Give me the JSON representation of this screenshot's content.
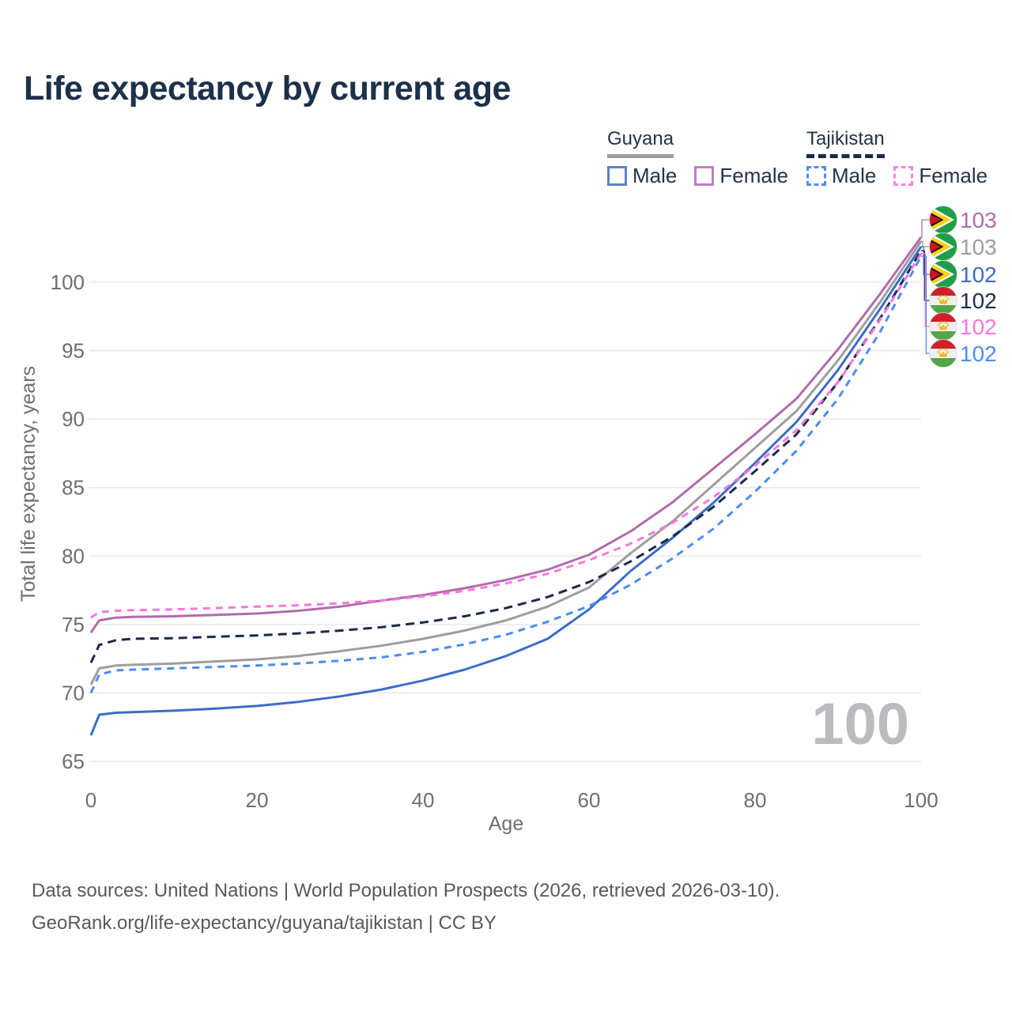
{
  "title": "Life expectancy by current age",
  "legend": {
    "groups": [
      {
        "country": "Guyana",
        "underline_style": "solid",
        "underline_color": "#9e9e9e",
        "male_label": "Male",
        "female_label": "Female",
        "male_color": "#5b82c8",
        "female_color": "#bd7fc0"
      },
      {
        "country": "Tajikistan",
        "underline_style": "dashed",
        "underline_color": "#1b2a4a",
        "male_label": "Male",
        "female_label": "Female",
        "male_color": "#4e8cf0",
        "female_color": "#fb84e8"
      }
    ]
  },
  "chart_data": {
    "type": "line",
    "title": "Life expectancy by current age",
    "xlabel": "Age",
    "ylabel": "Total life expectancy, years",
    "xlim": [
      0,
      100
    ],
    "ylim": [
      65,
      105.5
    ],
    "x_ticks": [
      0,
      20,
      40,
      60,
      80,
      100
    ],
    "y_ticks": [
      65,
      70,
      75,
      80,
      85,
      90,
      95,
      100
    ],
    "grid": "horizontal-only",
    "grid_color": "#e9e9ec",
    "tick_color": "#6e6f72",
    "watermark": "100",
    "watermark_color": "#bbbcc0",
    "ages": [
      0,
      1,
      3,
      5,
      10,
      15,
      20,
      25,
      30,
      35,
      40,
      45,
      50,
      55,
      60,
      65,
      70,
      75,
      80,
      85,
      90,
      95,
      100
    ],
    "series": [
      {
        "name": "Guyana Female",
        "country": "Guyana",
        "sex": "Female",
        "style": "solid",
        "color": "#b06cad",
        "flag": "guyana",
        "end_label": "103",
        "end_label_color": "#b06cad",
        "row": 0,
        "values": [
          74.4,
          75.3,
          75.5,
          75.55,
          75.6,
          75.7,
          75.8,
          76.0,
          76.3,
          76.75,
          77.15,
          77.65,
          78.25,
          79.0,
          80.1,
          81.8,
          83.9,
          86.4,
          88.9,
          91.5,
          95.1,
          99.1,
          103.3
        ]
      },
      {
        "name": "Guyana Total",
        "country": "Guyana",
        "sex": "All",
        "style": "solid",
        "color": "#9e9e9e",
        "flag": "guyana",
        "end_label": "103",
        "end_label_color": "#9e9e9e",
        "row": 1,
        "values": [
          70.6,
          71.8,
          72.0,
          72.05,
          72.15,
          72.3,
          72.45,
          72.7,
          73.05,
          73.45,
          73.95,
          74.55,
          75.3,
          76.3,
          77.7,
          80.2,
          82.5,
          85.2,
          87.9,
          90.6,
          94.3,
          98.5,
          103.0
        ]
      },
      {
        "name": "Guyana Male",
        "country": "Guyana",
        "sex": "Male",
        "style": "solid",
        "color": "#3d6cc8",
        "flag": "guyana",
        "end_label": "102",
        "end_label_color": "#3d6cc8",
        "row": 2,
        "values": [
          66.9,
          68.4,
          68.55,
          68.6,
          68.7,
          68.85,
          69.05,
          69.35,
          69.75,
          70.25,
          70.9,
          71.7,
          72.7,
          73.95,
          76.1,
          78.9,
          81.3,
          83.9,
          86.8,
          89.8,
          93.6,
          98.0,
          102.6
        ]
      },
      {
        "name": "Tajikistan Total",
        "country": "Tajikistan",
        "sex": "All",
        "style": "dashed",
        "color": "#1b2a4a",
        "flag": "tajikistan",
        "end_label": "102",
        "end_label_color": "#1e2d49",
        "row": 3,
        "values": [
          72.2,
          73.5,
          73.85,
          73.95,
          74.0,
          74.1,
          74.2,
          74.35,
          74.55,
          74.8,
          75.15,
          75.6,
          76.2,
          77.0,
          78.1,
          79.6,
          81.4,
          83.6,
          86.2,
          88.9,
          92.7,
          97.3,
          102.3
        ]
      },
      {
        "name": "Tajikistan Female",
        "country": "Tajikistan",
        "sex": "Female",
        "style": "dashed",
        "color": "#f878dc",
        "flag": "tajikistan",
        "end_label": "102",
        "end_label_color": "#f878dc",
        "row": 4,
        "values": [
          75.5,
          75.9,
          76.0,
          76.05,
          76.1,
          76.2,
          76.3,
          76.4,
          76.55,
          76.75,
          77.05,
          77.45,
          78.0,
          78.7,
          79.7,
          80.9,
          82.4,
          84.3,
          86.6,
          89.2,
          92.7,
          97.2,
          102.1
        ]
      },
      {
        "name": "Tajikistan Male",
        "country": "Tajikistan",
        "sex": "Male",
        "style": "dashed",
        "color": "#4e8cf0",
        "flag": "tajikistan",
        "end_label": "102",
        "end_label_color": "#4e8cf0",
        "row": 5,
        "values": [
          70.0,
          71.35,
          71.65,
          71.7,
          71.8,
          71.9,
          72.0,
          72.15,
          72.35,
          72.6,
          73.0,
          73.55,
          74.25,
          75.2,
          76.35,
          77.9,
          79.8,
          82.0,
          84.7,
          87.7,
          91.5,
          96.3,
          101.9
        ]
      }
    ]
  },
  "footer": {
    "line1": "Data sources: United Nations | World Population Prospects (2026, retrieved 2026-03-10).",
    "line2": "GeoRank.org/life-expectancy/guyana/tajikistan | CC BY"
  }
}
